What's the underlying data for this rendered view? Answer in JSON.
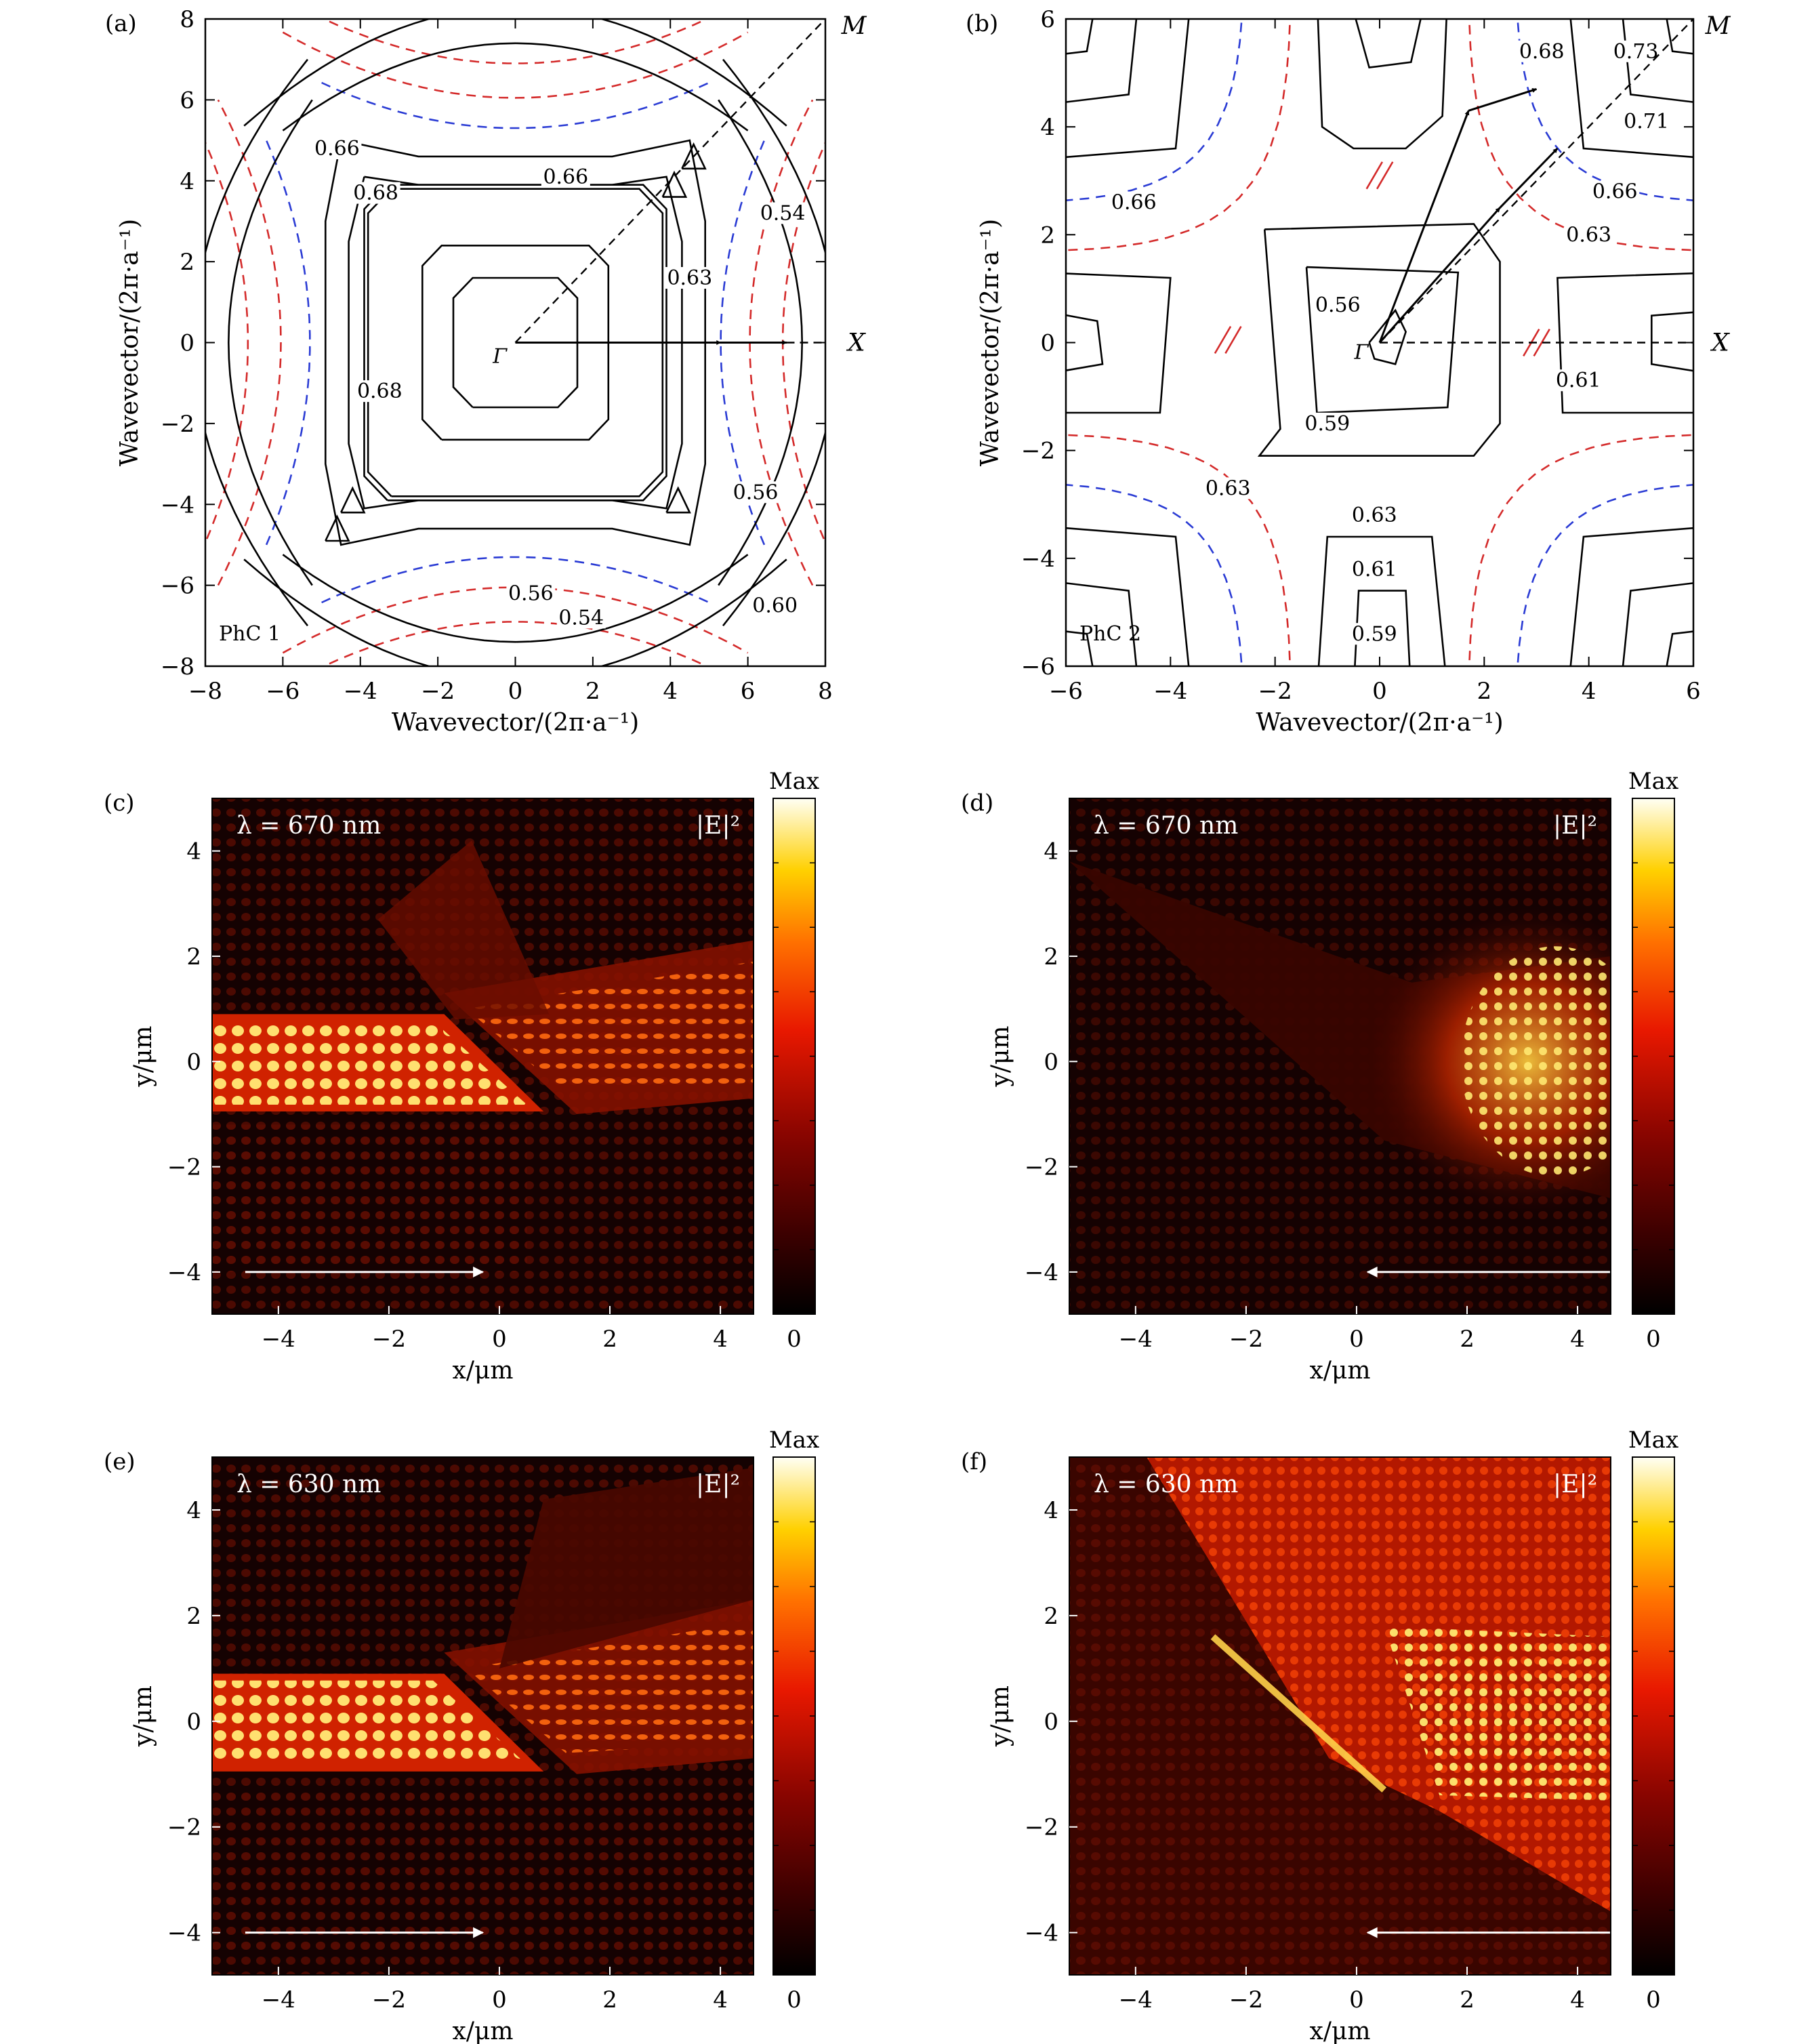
{
  "colors": {
    "red_dash": "#d42a2a",
    "blue_dash": "#2a3bd4",
    "arrow_white": "#ffffff",
    "field_dark": "#150202",
    "field_mid": "#c81c00",
    "field_bright": "#ffe24a"
  },
  "chart_data": [
    {
      "panel": "(a)",
      "type": "contour",
      "xlabel": "Wavevector/(2π·a⁻¹)",
      "ylabel": "Wavevector/(2π·a⁻¹)",
      "xlim": [
        -8,
        8
      ],
      "ylim": [
        -8,
        8
      ],
      "xticks": [
        "−8",
        "−6",
        "−4",
        "−2",
        "0",
        "2",
        "4",
        "6",
        "8"
      ],
      "yticks": [
        "−8",
        "−6",
        "−4",
        "−2",
        "0",
        "2",
        "4",
        "6",
        "8"
      ],
      "sample_label": "PhC 1",
      "symmetry_points": [
        "Γ",
        "X",
        "M"
      ],
      "contour_labels": [
        {
          "text": "0.66",
          "x": -4.6,
          "y": 4.8
        },
        {
          "text": "0.68",
          "x": -3.6,
          "y": 3.7
        },
        {
          "text": "0.66",
          "x": 1.3,
          "y": 4.1
        },
        {
          "text": "0.54",
          "x": 6.9,
          "y": 3.2
        },
        {
          "text": "0.63",
          "x": 4.5,
          "y": 1.6
        },
        {
          "text": "0.68",
          "x": -3.5,
          "y": -1.2
        },
        {
          "text": "0.56",
          "x": 6.2,
          "y": -3.7
        },
        {
          "text": "0.56",
          "x": 0.4,
          "y": -6.2
        },
        {
          "text": "0.60",
          "x": 6.7,
          "y": -6.5
        },
        {
          "text": "0.54",
          "x": 1.7,
          "y": -6.8
        }
      ]
    },
    {
      "panel": "(b)",
      "type": "contour",
      "xlabel": "Wavevector/(2π·a⁻¹)",
      "ylabel": "Wavevector/(2π·a⁻¹)",
      "xlim": [
        -6,
        6
      ],
      "ylim": [
        -6,
        6
      ],
      "xticks": [
        "−6",
        "−4",
        "−2",
        "0",
        "2",
        "4",
        "6"
      ],
      "yticks": [
        "−6",
        "−4",
        "−2",
        "0",
        "2",
        "4",
        "6"
      ],
      "sample_label": "PhC 2",
      "symmetry_points": [
        "Γ",
        "X",
        "M"
      ],
      "contour_labels": [
        {
          "text": "0.68",
          "x": 3.1,
          "y": 5.4
        },
        {
          "text": "0.73",
          "x": 4.9,
          "y": 5.4
        },
        {
          "text": "0.71",
          "x": 5.1,
          "y": 4.1
        },
        {
          "text": "0.66",
          "x": -4.7,
          "y": 2.6
        },
        {
          "text": "0.66",
          "x": 4.5,
          "y": 2.8
        },
        {
          "text": "0.63",
          "x": 4.0,
          "y": 2.0
        },
        {
          "text": "0.56",
          "x": -0.8,
          "y": 0.7
        },
        {
          "text": "0.61",
          "x": 3.8,
          "y": -0.7
        },
        {
          "text": "0.59",
          "x": -1.0,
          "y": -1.5
        },
        {
          "text": "0.63",
          "x": -2.9,
          "y": -2.7
        },
        {
          "text": "0.63",
          "x": -0.1,
          "y": -3.2
        },
        {
          "text": "0.61",
          "x": -0.1,
          "y": -4.2
        },
        {
          "text": "0.59",
          "x": -0.1,
          "y": -5.4
        }
      ]
    },
    {
      "panel": "(c)",
      "type": "heatmap",
      "wavelength": "λ = 670 nm",
      "quantity": "|E|²",
      "xlabel": "x/μm",
      "ylabel": "y/μm",
      "xlim": [
        -5.2,
        4.6
      ],
      "ylim": [
        -4.8,
        5.0
      ],
      "xticks": [
        "−4",
        "−2",
        "0",
        "2",
        "4"
      ],
      "yticks": [
        "−4",
        "−2",
        "0",
        "2",
        "4"
      ],
      "colorbar": {
        "max": "Max",
        "min": "0"
      },
      "arrow": "right"
    },
    {
      "panel": "(d)",
      "type": "heatmap",
      "wavelength": "λ = 670 nm",
      "quantity": "|E|²",
      "xlabel": "x/μm",
      "ylabel": "y/μm",
      "xlim": [
        -5.2,
        4.6
      ],
      "ylim": [
        -4.8,
        5.0
      ],
      "xticks": [
        "−4",
        "−2",
        "0",
        "2",
        "4"
      ],
      "yticks": [
        "−4",
        "−2",
        "0",
        "2",
        "4"
      ],
      "colorbar": {
        "max": "Max",
        "min": "0"
      },
      "arrow": "left"
    },
    {
      "panel": "(e)",
      "type": "heatmap",
      "wavelength": "λ = 630 nm",
      "quantity": "|E|²",
      "xlabel": "x/μm",
      "ylabel": "y/μm",
      "xlim": [
        -5.2,
        4.6
      ],
      "ylim": [
        -4.8,
        5.0
      ],
      "xticks": [
        "−4",
        "−2",
        "0",
        "2",
        "4"
      ],
      "yticks": [
        "−4",
        "−2",
        "0",
        "2",
        "4"
      ],
      "colorbar": {
        "max": "Max",
        "min": "0"
      },
      "arrow": "right"
    },
    {
      "panel": "(f)",
      "type": "heatmap",
      "wavelength": "λ = 630 nm",
      "quantity": "|E|²",
      "xlabel": "x/μm",
      "ylabel": "y/μm",
      "xlim": [
        -5.2,
        4.6
      ],
      "ylim": [
        -4.8,
        5.0
      ],
      "xticks": [
        "−4",
        "−2",
        "0",
        "2",
        "4"
      ],
      "yticks": [
        "−4",
        "−2",
        "0",
        "2",
        "4"
      ],
      "colorbar": {
        "max": "Max",
        "min": "0"
      },
      "arrow": "left"
    }
  ]
}
